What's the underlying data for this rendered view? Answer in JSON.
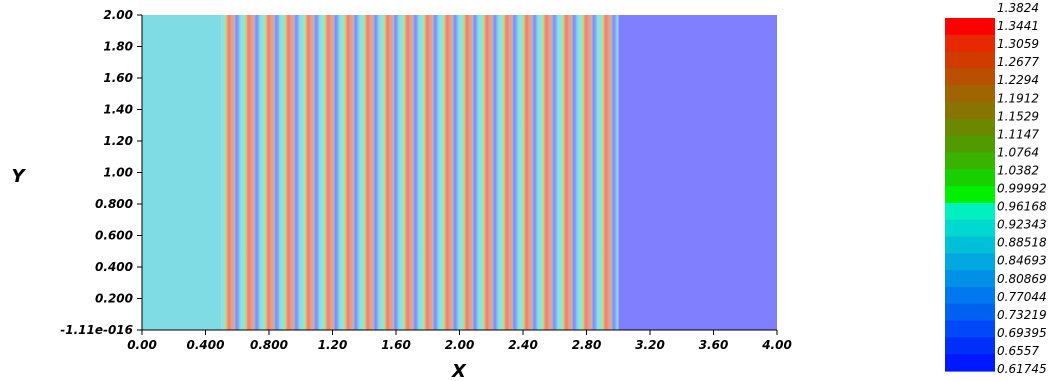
{
  "chart_data": {
    "type": "heatmap",
    "xlabel": "X",
    "ylabel": "Y",
    "xlim": [
      0,
      4
    ],
    "ylim": [
      -1.11e-16,
      2
    ],
    "x_ticks": [
      "0.00",
      "0.400",
      "0.800",
      "1.20",
      "1.60",
      "2.00",
      "2.40",
      "2.80",
      "3.20",
      "3.60",
      "4.00"
    ],
    "y_ticks": [
      "-1.11e-016",
      "0.200",
      "0.400",
      "0.600",
      "0.800",
      "1.00",
      "1.20",
      "1.40",
      "1.60",
      "1.80",
      "2.00"
    ],
    "regions": [
      {
        "x_start": 0.0,
        "x_end": 0.5,
        "value": 0.96
      },
      {
        "x_start": 0.5,
        "x_end": 3.0,
        "value": "oscillating 0.75-1.31",
        "stripe_count": 20
      },
      {
        "x_start": 3.0,
        "x_end": 4.0,
        "value": 0.76
      }
    ],
    "colorbar": {
      "min": 0.61745,
      "max": 1.3824,
      "labels": [
        "1.3824",
        "1.3441",
        "1.3059",
        "1.2677",
        "1.2294",
        "1.1912",
        "1.1529",
        "1.1147",
        "1.0764",
        "1.0382",
        "0.99992",
        "0.96168",
        "0.92343",
        "0.88518",
        "0.84693",
        "0.80869",
        "0.77044",
        "0.73219",
        "0.69395",
        "0.6557",
        "0.61745"
      ],
      "colors": [
        "#ff0000",
        "#e82800",
        "#d03c00",
        "#b85000",
        "#a06400",
        "#887400",
        "#6c8800",
        "#509c00",
        "#38b400",
        "#18d000",
        "#00f000",
        "#00f0c0",
        "#00d8d0",
        "#00c0d8",
        "#00a8e0",
        "#0090e8",
        "#0078f0",
        "#0060f0",
        "#0048f8",
        "#0030f8",
        "#0018ff"
      ]
    }
  }
}
